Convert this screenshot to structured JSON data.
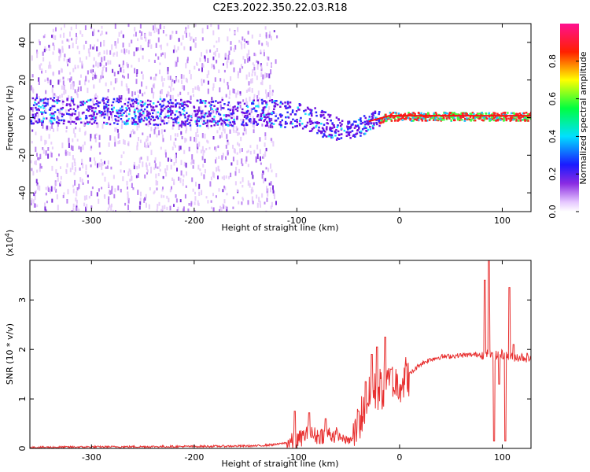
{
  "figure": {
    "title": "C2E3.2022.350.22.03.R18"
  },
  "colors": {
    "snr_line": "#e83030",
    "background": "#ffffff"
  },
  "chart_data": [
    {
      "type": "heatmap",
      "xlabel": "Height of straight line (km)",
      "ylabel": "Frequency (Hz)",
      "xlim": [
        -360,
        128
      ],
      "ylim": [
        -50,
        50
      ],
      "x_ticks": [
        -300,
        -200,
        -100,
        0,
        100
      ],
      "y_ticks": [
        -40,
        -20,
        0,
        20,
        40
      ],
      "colorbar": {
        "label": "Normalized spectral amplitude",
        "range": [
          0,
          1
        ],
        "ticks": [
          "0.0",
          "0.2",
          "0.4",
          "0.6",
          "0.8"
        ],
        "tick_values": [
          0,
          0.2,
          0.4,
          0.6,
          0.8
        ],
        "colormap": "rainbow (white → violet → blue → cyan → green → yellow → red → magenta)"
      },
      "ridge": [
        {
          "x": -360,
          "y": 4
        },
        {
          "x": -300,
          "y": 4
        },
        {
          "x": -200,
          "y": 3
        },
        {
          "x": -130,
          "y": 3
        },
        {
          "x": -100,
          "y": 2
        },
        {
          "x": -80,
          "y": -2
        },
        {
          "x": -60,
          "y": -6
        },
        {
          "x": -45,
          "y": -6
        },
        {
          "x": -30,
          "y": -2
        },
        {
          "x": -10,
          "y": 1
        },
        {
          "x": 20,
          "y": 1
        },
        {
          "x": 60,
          "y": 1
        },
        {
          "x": 100,
          "y": 1
        },
        {
          "x": 128,
          "y": 1
        }
      ],
      "noise_extent": {
        "x_from": -360,
        "x_to": -120
      }
    },
    {
      "type": "line",
      "xlabel": "Height of straight line (km)",
      "ylabel": "SNR (10 * v/v)",
      "y_multiplier": "(x10^4)",
      "y_multiplier_base": "(x10",
      "y_multiplier_exp": "4",
      "y_multiplier_close": ")",
      "xlim": [
        -360,
        128
      ],
      "ylim": [
        0,
        3.8
      ],
      "x_ticks": [
        -300,
        -200,
        -100,
        0,
        100
      ],
      "y_ticks": [
        0,
        1,
        2,
        3
      ],
      "series": [
        {
          "x": [
            -360,
            -300,
            -200,
            -140,
            -120,
            -100,
            -90,
            -80,
            -70,
            -60,
            -50,
            -45,
            -40,
            -35,
            -30,
            -25,
            -20,
            -15,
            -10,
            -5,
            0,
            10,
            20,
            30,
            40,
            60,
            80,
            85,
            88,
            90,
            95,
            100,
            105,
            110,
            115,
            128
          ],
          "y": [
            0.02,
            0.03,
            0.04,
            0.05,
            0.08,
            0.15,
            0.3,
            0.25,
            0.3,
            0.25,
            0.15,
            0.2,
            0.5,
            0.8,
            1.0,
            1.1,
            1.2,
            1.2,
            1.3,
            1.3,
            1.35,
            1.5,
            1.7,
            1.8,
            1.85,
            1.88,
            1.9,
            1.9,
            1.92,
            1.85,
            1.88,
            1.9,
            1.85,
            1.85,
            1.85,
            1.83
          ]
        }
      ],
      "spikes": [
        {
          "x": -102,
          "y": 0.75
        },
        {
          "x": -88,
          "y": 0.72
        },
        {
          "x": -72,
          "y": 0.6
        },
        {
          "x": -40,
          "y": 0.75
        },
        {
          "x": -33,
          "y": 1.35
        },
        {
          "x": -27,
          "y": 1.9
        },
        {
          "x": -22,
          "y": 2.05
        },
        {
          "x": -14,
          "y": 2.25
        },
        {
          "x": -8,
          "y": 1.6
        },
        {
          "x": 83,
          "y": 3.4
        },
        {
          "x": 87,
          "y": 3.85
        },
        {
          "x": 92,
          "y": 0.15
        },
        {
          "x": 97,
          "y": 1.3
        },
        {
          "x": 103,
          "y": 0.15
        },
        {
          "x": 107,
          "y": 3.25
        },
        {
          "x": 111,
          "y": 2.1
        }
      ]
    }
  ]
}
